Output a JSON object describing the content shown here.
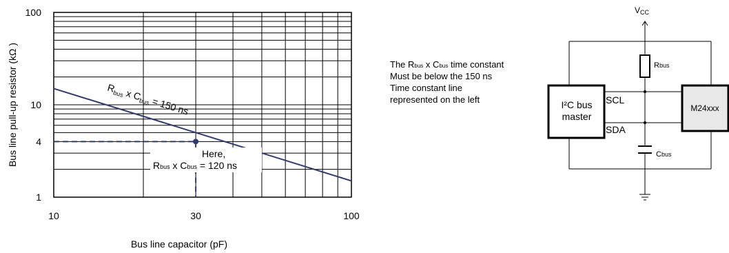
{
  "chart_data": {
    "type": "line",
    "xscale": "log",
    "yscale": "log",
    "xlim": [
      10,
      100
    ],
    "ylim": [
      1,
      100
    ],
    "xticks": [
      "10",
      "30",
      "100"
    ],
    "yticks": [
      "100",
      "10",
      "4",
      "1"
    ],
    "xlabel": "Bus line capacitor (pF)",
    "ylabel": "Bus line pull-up resistor (kΩ )",
    "grid": true,
    "series": [
      {
        "name": "Rbus x Cbus = 150 ns",
        "x": [
          10,
          100
        ],
        "y": [
          15,
          1.5
        ]
      }
    ],
    "highlight_point": {
      "x": 30,
      "y": 4
    },
    "annotation": {
      "line1": "Here,",
      "line2_prefix": "R",
      "line2_sub1": "bus",
      "line2_mid": " x C",
      "line2_sub2": "bus",
      "line2_suffix": " = 120 ns"
    },
    "line_label": {
      "p1": "R",
      "s1": "bus",
      "p2": " x C",
      "s2": "bus",
      "p3": " = 150 ns"
    },
    "colors": {
      "line": "#2e3b6e",
      "grid": "#000000"
    }
  },
  "note": {
    "line1": {
      "a": "The R",
      "b": "bus",
      "c": " x C",
      "d": "bus",
      "e": " time constant"
    },
    "line2": "Must be below the 150 ns",
    "line3": "Time constant line",
    "line4": "represented on the left"
  },
  "circuit": {
    "vcc": "V",
    "vcc_sub": "CC",
    "rbus": "R",
    "rbus_sub": "bus",
    "cbus": "C",
    "cbus_sub": "bus",
    "master_line1": "I²C bus",
    "master_line2": "master",
    "scl": "SCL",
    "sda": "SDA",
    "slave": "M24xxx"
  }
}
